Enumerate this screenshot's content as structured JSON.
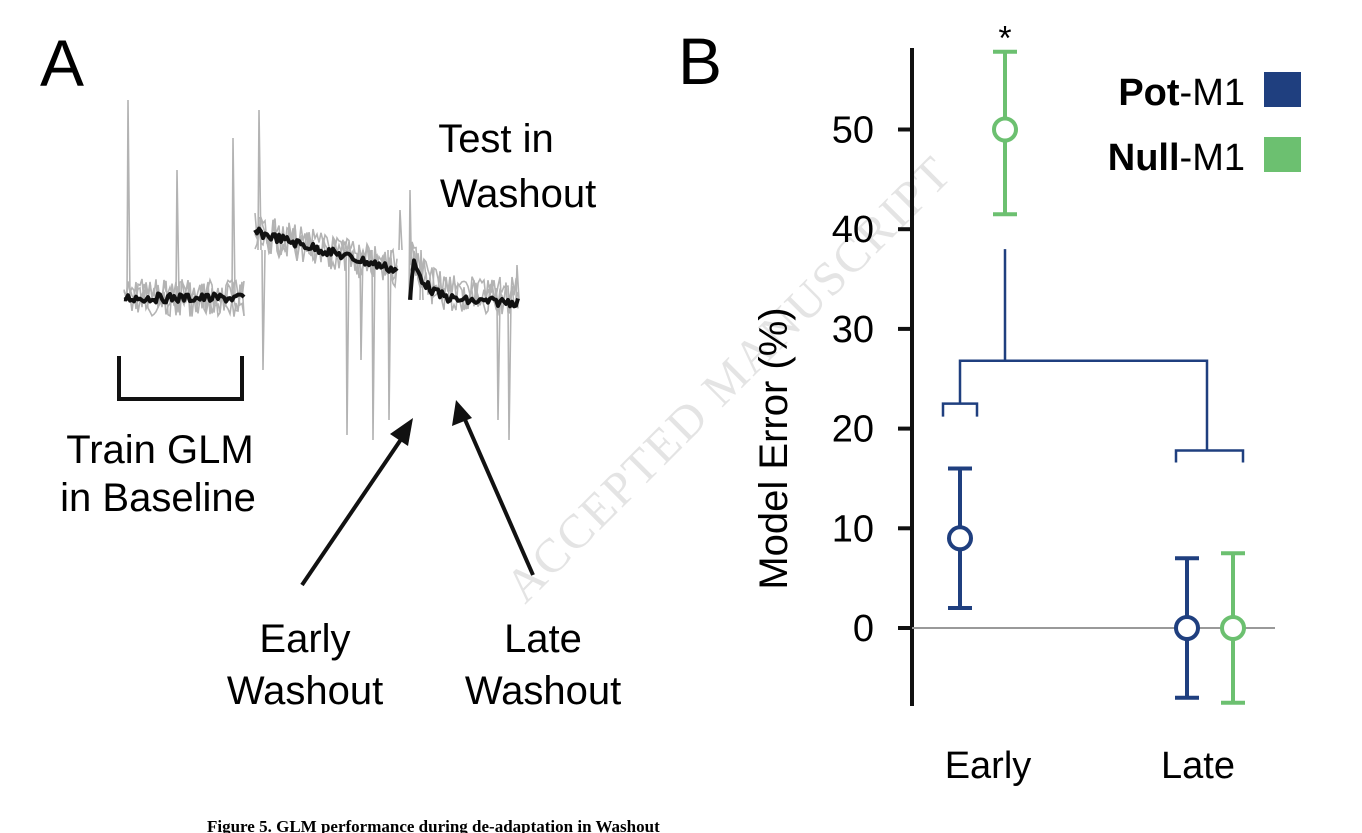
{
  "panel_a": {
    "letter": "A",
    "train_label_1": "Train GLM",
    "train_label_2": "in Baseline",
    "test_label_1": "Test in",
    "test_label_2": "Washout",
    "early_label_1": "Early",
    "early_label_2": "Washout",
    "late_label_1": "Late",
    "late_label_2": "Washout",
    "trace_color": "#b3b3b3",
    "mean_color": "#111111"
  },
  "panel_b": {
    "letter": "B"
  },
  "watermark": "ACCEPTED MANUSCRIPT",
  "caption": "Figure 5. GLM performance during de-adaptation in Washout",
  "chart_data": {
    "type": "scatter",
    "title": "",
    "xlabel": "",
    "ylabel": "Model Error (%)",
    "categories": [
      "Early",
      "Late"
    ],
    "ylim": [
      -8,
      58
    ],
    "yticks": [
      0,
      10,
      20,
      30,
      40,
      50
    ],
    "zero_line": true,
    "grid": false,
    "legend_position": "top-right",
    "series": [
      {
        "name": "Pot-M1",
        "name_bold": "Pot",
        "name_rest": "-M1",
        "color": "#1f3f7f",
        "points": [
          {
            "category": "Early",
            "mean": 9,
            "lower": 2,
            "upper": 16
          },
          {
            "category": "Late",
            "mean": 0,
            "lower": -7,
            "upper": 7
          }
        ]
      },
      {
        "name": "Null-M1",
        "name_bold": "Null",
        "name_rest": "-M1",
        "color": "#6cc070",
        "points": [
          {
            "category": "Early",
            "mean": 50,
            "lower": 41.5,
            "upper": 57.8,
            "annotation": "*"
          },
          {
            "category": "Late",
            "mean": 0,
            "lower": -7.5,
            "upper": 7.5
          }
        ]
      }
    ],
    "dendrogram_color": "#1f3f7f"
  }
}
